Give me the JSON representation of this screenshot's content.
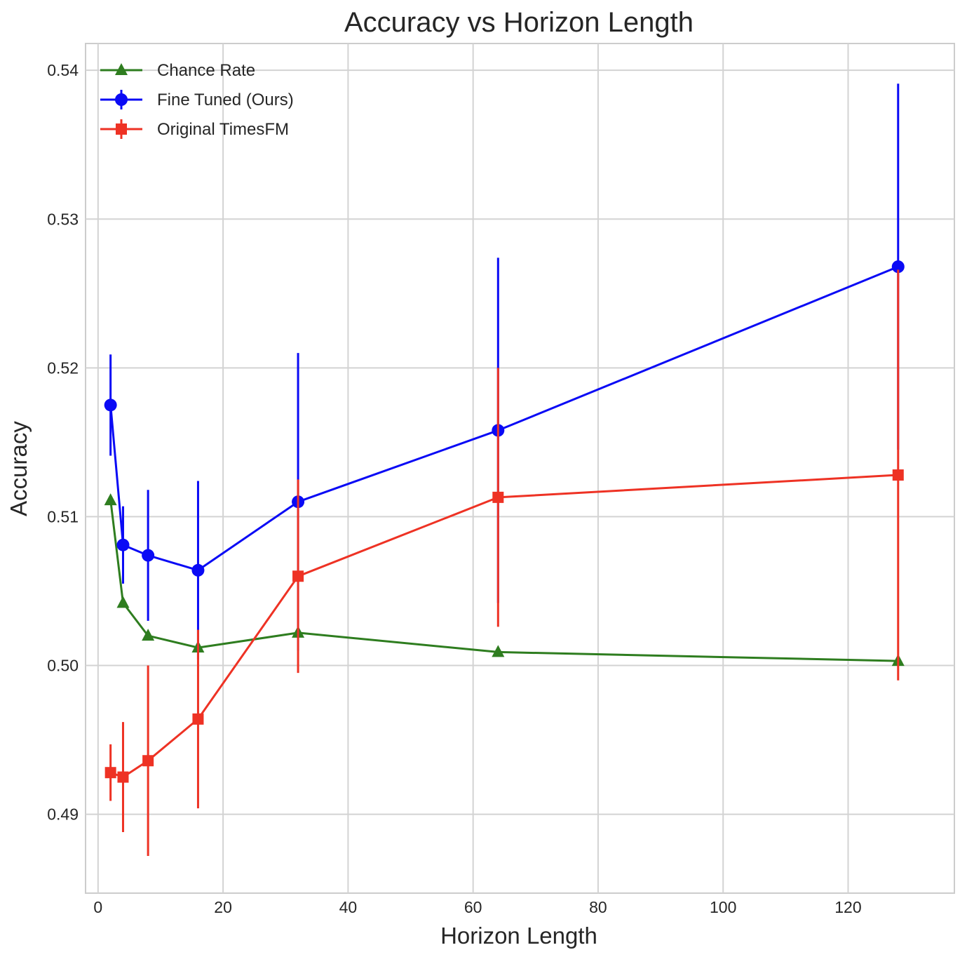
{
  "chart_data": {
    "type": "line",
    "title": "Accuracy vs Horizon Length",
    "xlabel": "Horizon Length",
    "ylabel": "Accuracy",
    "xlim": [
      -2,
      137
    ],
    "ylim": [
      0.4847,
      0.5418
    ],
    "xticks": [
      0,
      20,
      40,
      60,
      80,
      100,
      120
    ],
    "yticks": [
      0.49,
      0.5,
      0.51,
      0.52,
      0.53,
      0.54
    ],
    "xtick_labels": [
      "0",
      "20",
      "40",
      "60",
      "80",
      "100",
      "120"
    ],
    "ytick_labels": [
      "0.49",
      "0.50",
      "0.51",
      "0.52",
      "0.53",
      "0.54"
    ],
    "grid": true,
    "legend_position": "top-left",
    "x": [
      2,
      4,
      8,
      16,
      32,
      64,
      128
    ],
    "series": [
      {
        "name": "Chance Rate",
        "color": "#2e7d1f",
        "marker": "triangle",
        "values": [
          0.5111,
          0.5042,
          0.502,
          0.5012,
          0.5022,
          0.5009,
          0.5003
        ]
      },
      {
        "name": "Fine Tuned (Ours)",
        "color": "#0a0af5",
        "marker": "circle",
        "values": [
          0.5175,
          0.5081,
          0.5074,
          0.5064,
          0.511,
          0.5158,
          0.5268
        ],
        "error": [
          0.0034,
          0.0026,
          0.0044,
          0.006,
          0.01,
          0.0116,
          0.0123
        ]
      },
      {
        "name": "Original TimesFM",
        "color": "#ee3224",
        "marker": "square",
        "values": [
          0.4928,
          0.4925,
          0.4936,
          0.4964,
          0.506,
          0.5113,
          0.5128
        ],
        "error": [
          0.0019,
          0.0037,
          0.0064,
          0.006,
          0.0065,
          0.0087,
          0.0138
        ]
      }
    ]
  }
}
